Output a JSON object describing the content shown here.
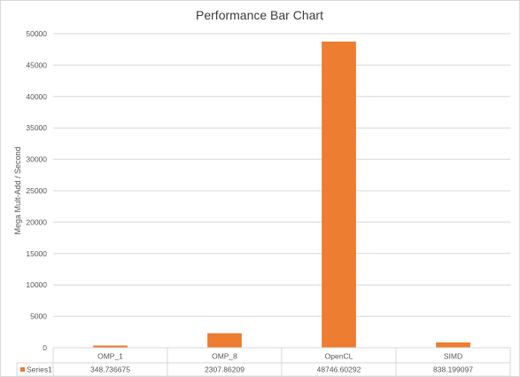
{
  "chart_data": {
    "type": "bar",
    "title": "Performance Bar Chart",
    "xlabel": "",
    "ylabel": "Mega Mult-Add / Second",
    "categories": [
      "OMP_1",
      "OMP_8",
      "OpenCL",
      "SIMD"
    ],
    "series": [
      {
        "name": "Series1",
        "values": [
          348.736675,
          2307.86209,
          48746.60292,
          838.199097
        ],
        "value_labels": [
          "348.736675",
          "2307.86209",
          "48746.60292",
          "838.199097"
        ],
        "color": "#ED7D31"
      }
    ],
    "ylim": [
      0,
      50000
    ],
    "yticks": [
      0,
      5000,
      10000,
      15000,
      20000,
      25000,
      30000,
      35000,
      40000,
      45000,
      50000
    ],
    "grid": true,
    "legend": "data-table",
    "colors": {
      "gridline": "#d9d9d9",
      "text": "#595959",
      "title": "#404040",
      "bar": "#ED7D31"
    }
  }
}
